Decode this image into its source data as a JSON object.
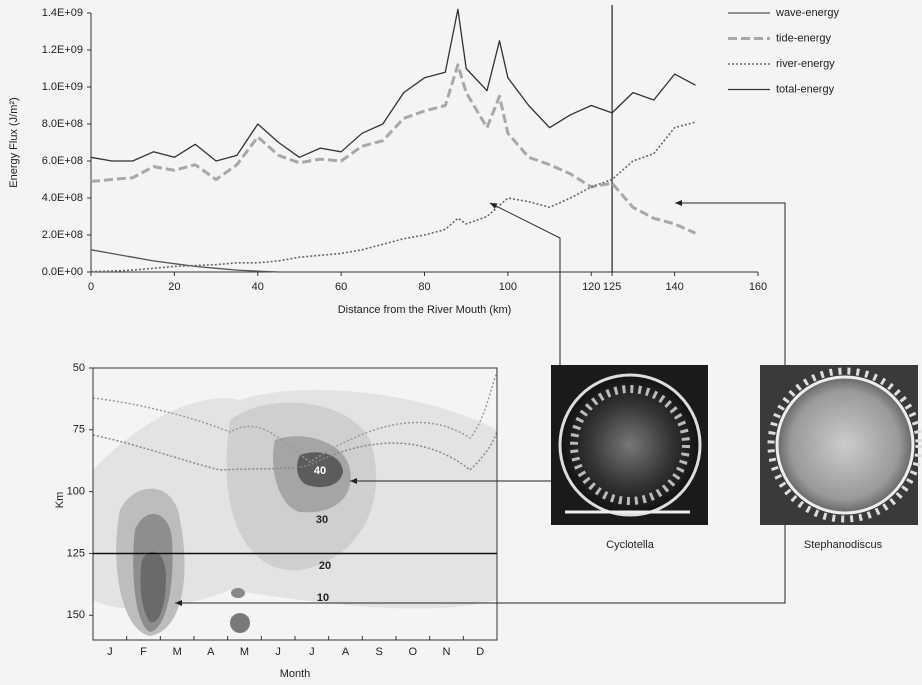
{
  "chart_data": [
    {
      "type": "line",
      "ylabel": "Energy Flux (J/m²)",
      "xlabel": "Distance from the River Mouth (km)",
      "xlim": [
        0,
        160
      ],
      "xticks": [
        0,
        20,
        40,
        60,
        80,
        100,
        120,
        125,
        140,
        160
      ],
      "ylim": [
        0,
        1400000000
      ],
      "yticks": [
        {
          "value": 0,
          "label": "0.0E+00"
        },
        {
          "value": 200000000,
          "label": "2.0E+08"
        },
        {
          "value": 400000000,
          "label": "4.0E+08"
        },
        {
          "value": 600000000,
          "label": "6.0E+08"
        },
        {
          "value": 800000000,
          "label": "8.0E+08"
        },
        {
          "value": 1000000000,
          "label": "1.0E+09"
        },
        {
          "value": 1200000000,
          "label": "1.2E+09"
        },
        {
          "value": 1400000000,
          "label": "1.4E+09"
        }
      ],
      "vline": 125,
      "x": [
        0,
        5,
        10,
        15,
        20,
        25,
        30,
        35,
        40,
        45,
        50,
        55,
        60,
        65,
        70,
        75,
        80,
        85,
        88,
        90,
        95,
        98,
        100,
        105,
        110,
        115,
        120,
        125,
        130,
        135,
        140,
        145
      ],
      "series": [
        {
          "name": "wave-energy",
          "color": "#555555",
          "style": "solid",
          "values": [
            120000000,
            100000000,
            80000000,
            60000000,
            45000000,
            30000000,
            20000000,
            10000000,
            5000000,
            0,
            null,
            null,
            null,
            null,
            null,
            null,
            null,
            null,
            null,
            null,
            null,
            null,
            null,
            null,
            null,
            null,
            null,
            null,
            null,
            null,
            null,
            null
          ]
        },
        {
          "name": "tide-energy",
          "color": "#a8a8a8",
          "style": "dashed",
          "values": [
            490000000,
            500000000,
            510000000,
            570000000,
            550000000,
            580000000,
            500000000,
            580000000,
            730000000,
            630000000,
            590000000,
            610000000,
            600000000,
            680000000,
            710000000,
            830000000,
            870000000,
            900000000,
            1120000000,
            970000000,
            780000000,
            950000000,
            750000000,
            620000000,
            580000000,
            530000000,
            460000000,
            480000000,
            350000000,
            290000000,
            260000000,
            210000000
          ]
        },
        {
          "name": "river-energy",
          "color": "#666666",
          "style": "dotted",
          "values": [
            2000000,
            5000000,
            10000000,
            20000000,
            30000000,
            35000000,
            40000000,
            50000000,
            50000000,
            60000000,
            80000000,
            90000000,
            100000000,
            120000000,
            150000000,
            180000000,
            200000000,
            230000000,
            290000000,
            260000000,
            300000000,
            360000000,
            400000000,
            380000000,
            350000000,
            400000000,
            460000000,
            500000000,
            600000000,
            640000000,
            780000000,
            810000000
          ]
        },
        {
          "name": "total-energy",
          "color": "#333333",
          "style": "solid",
          "values": [
            620000000,
            600000000,
            600000000,
            650000000,
            620000000,
            690000000,
            600000000,
            630000000,
            800000000,
            700000000,
            620000000,
            670000000,
            650000000,
            750000000,
            800000000,
            970000000,
            1050000000,
            1080000000,
            1420000000,
            1100000000,
            980000000,
            1250000000,
            1050000000,
            900000000,
            780000000,
            850000000,
            900000000,
            860000000,
            970000000,
            930000000,
            1070000000,
            1010000000
          ]
        }
      ]
    },
    {
      "type": "contour",
      "xlabel": "Month",
      "ylabel": "Km",
      "categories": [
        "J",
        "F",
        "M",
        "A",
        "M",
        "J",
        "J",
        "A",
        "S",
        "O",
        "N",
        "D"
      ],
      "ylim": [
        50,
        160
      ],
      "y_inverted": true,
      "yticks": [
        50,
        75,
        100,
        125,
        150
      ],
      "hline": 125,
      "contour_labels": [
        40,
        30,
        20,
        10
      ]
    }
  ],
  "images": [
    {
      "label": "Cyclotella"
    },
    {
      "label": "Stephanodiscus"
    }
  ]
}
